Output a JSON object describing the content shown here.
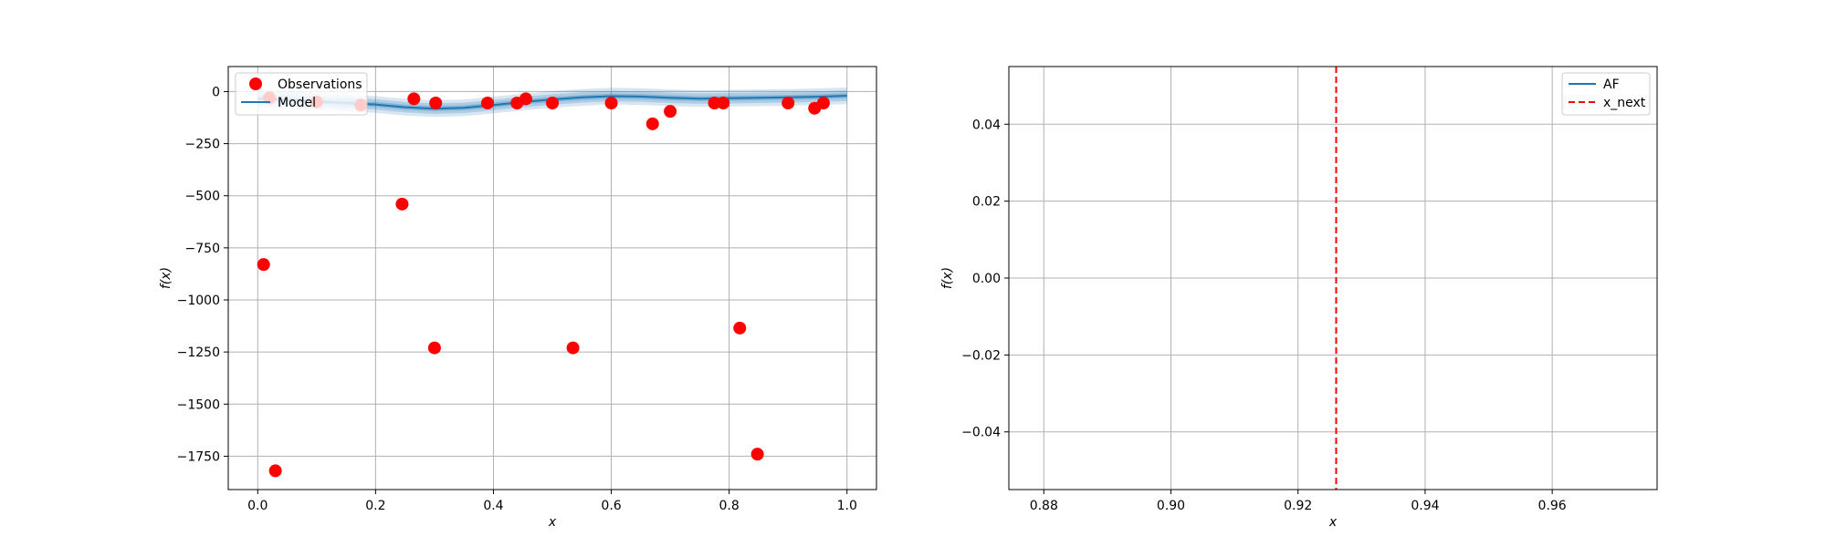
{
  "chart_data": [
    {
      "type": "scatter",
      "xlabel": "x",
      "ylabel": "f(x)",
      "xlim": [
        -0.05,
        1.05
      ],
      "ylim": [
        -1910,
        120
      ],
      "xticks": [
        0.0,
        0.2,
        0.4,
        0.6,
        0.8,
        1.0
      ],
      "xtick_labels": [
        "0.0",
        "0.2",
        "0.4",
        "0.6",
        "0.8",
        "1.0"
      ],
      "yticks": [
        0,
        -250,
        -500,
        -750,
        -1000,
        -1250,
        -1500,
        -1750
      ],
      "ytick_labels": [
        "0",
        "−250",
        "−500",
        "−750",
        "−1000",
        "−1250",
        "−1500",
        "−1750"
      ],
      "grid": true,
      "legend_position": "top-left",
      "series": [
        {
          "name": "Observations",
          "kind": "scatter",
          "color": "#ff0000",
          "x": [
            0.01,
            0.02,
            0.03,
            0.1,
            0.175,
            0.245,
            0.265,
            0.3,
            0.302,
            0.39,
            0.44,
            0.455,
            0.5,
            0.535,
            0.6,
            0.67,
            0.7,
            0.775,
            0.79,
            0.818,
            0.848,
            0.9,
            0.945,
            0.96
          ],
          "y": [
            -830,
            -30,
            -1820,
            -50,
            -65,
            -540,
            -35,
            -1230,
            -55,
            -55,
            -55,
            -35,
            -55,
            -1230,
            -55,
            -155,
            -95,
            -55,
            -55,
            -1135,
            -1740,
            -55,
            -80,
            -55
          ]
        },
        {
          "name": "Model",
          "kind": "line",
          "color": "#1f77b4",
          "x": [
            0.0,
            0.05,
            0.1,
            0.15,
            0.2,
            0.25,
            0.3,
            0.35,
            0.4,
            0.45,
            0.5,
            0.55,
            0.6,
            0.65,
            0.7,
            0.75,
            0.8,
            0.85,
            0.9,
            0.95,
            1.0
          ],
          "y": [
            -35,
            -40,
            -48,
            -55,
            -62,
            -75,
            -82,
            -78,
            -65,
            -50,
            -38,
            -28,
            -22,
            -24,
            -30,
            -34,
            -32,
            -30,
            -28,
            -25,
            -20
          ],
          "band_halfwidth": [
            40,
            25,
            12
          ]
        }
      ]
    },
    {
      "type": "line",
      "xlabel": "x",
      "ylabel": "f(x)",
      "xlim": [
        0.8745,
        0.9765
      ],
      "ylim": [
        -0.055,
        0.055
      ],
      "xticks": [
        0.88,
        0.9,
        0.92,
        0.94,
        0.96
      ],
      "xtick_labels": [
        "0.88",
        "0.90",
        "0.92",
        "0.94",
        "0.96"
      ],
      "yticks": [
        0.04,
        0.02,
        0.0,
        -0.02,
        -0.04
      ],
      "ytick_labels": [
        "0.04",
        "0.02",
        "0.00",
        "−0.02",
        "−0.04"
      ],
      "grid": true,
      "legend_position": "top-right",
      "series": [
        {
          "name": "AF",
          "kind": "line",
          "color": "#1f77b4",
          "x": [],
          "y": []
        },
        {
          "name": "x_next",
          "kind": "vline",
          "color": "#ff0000",
          "x": 0.926
        }
      ]
    }
  ]
}
